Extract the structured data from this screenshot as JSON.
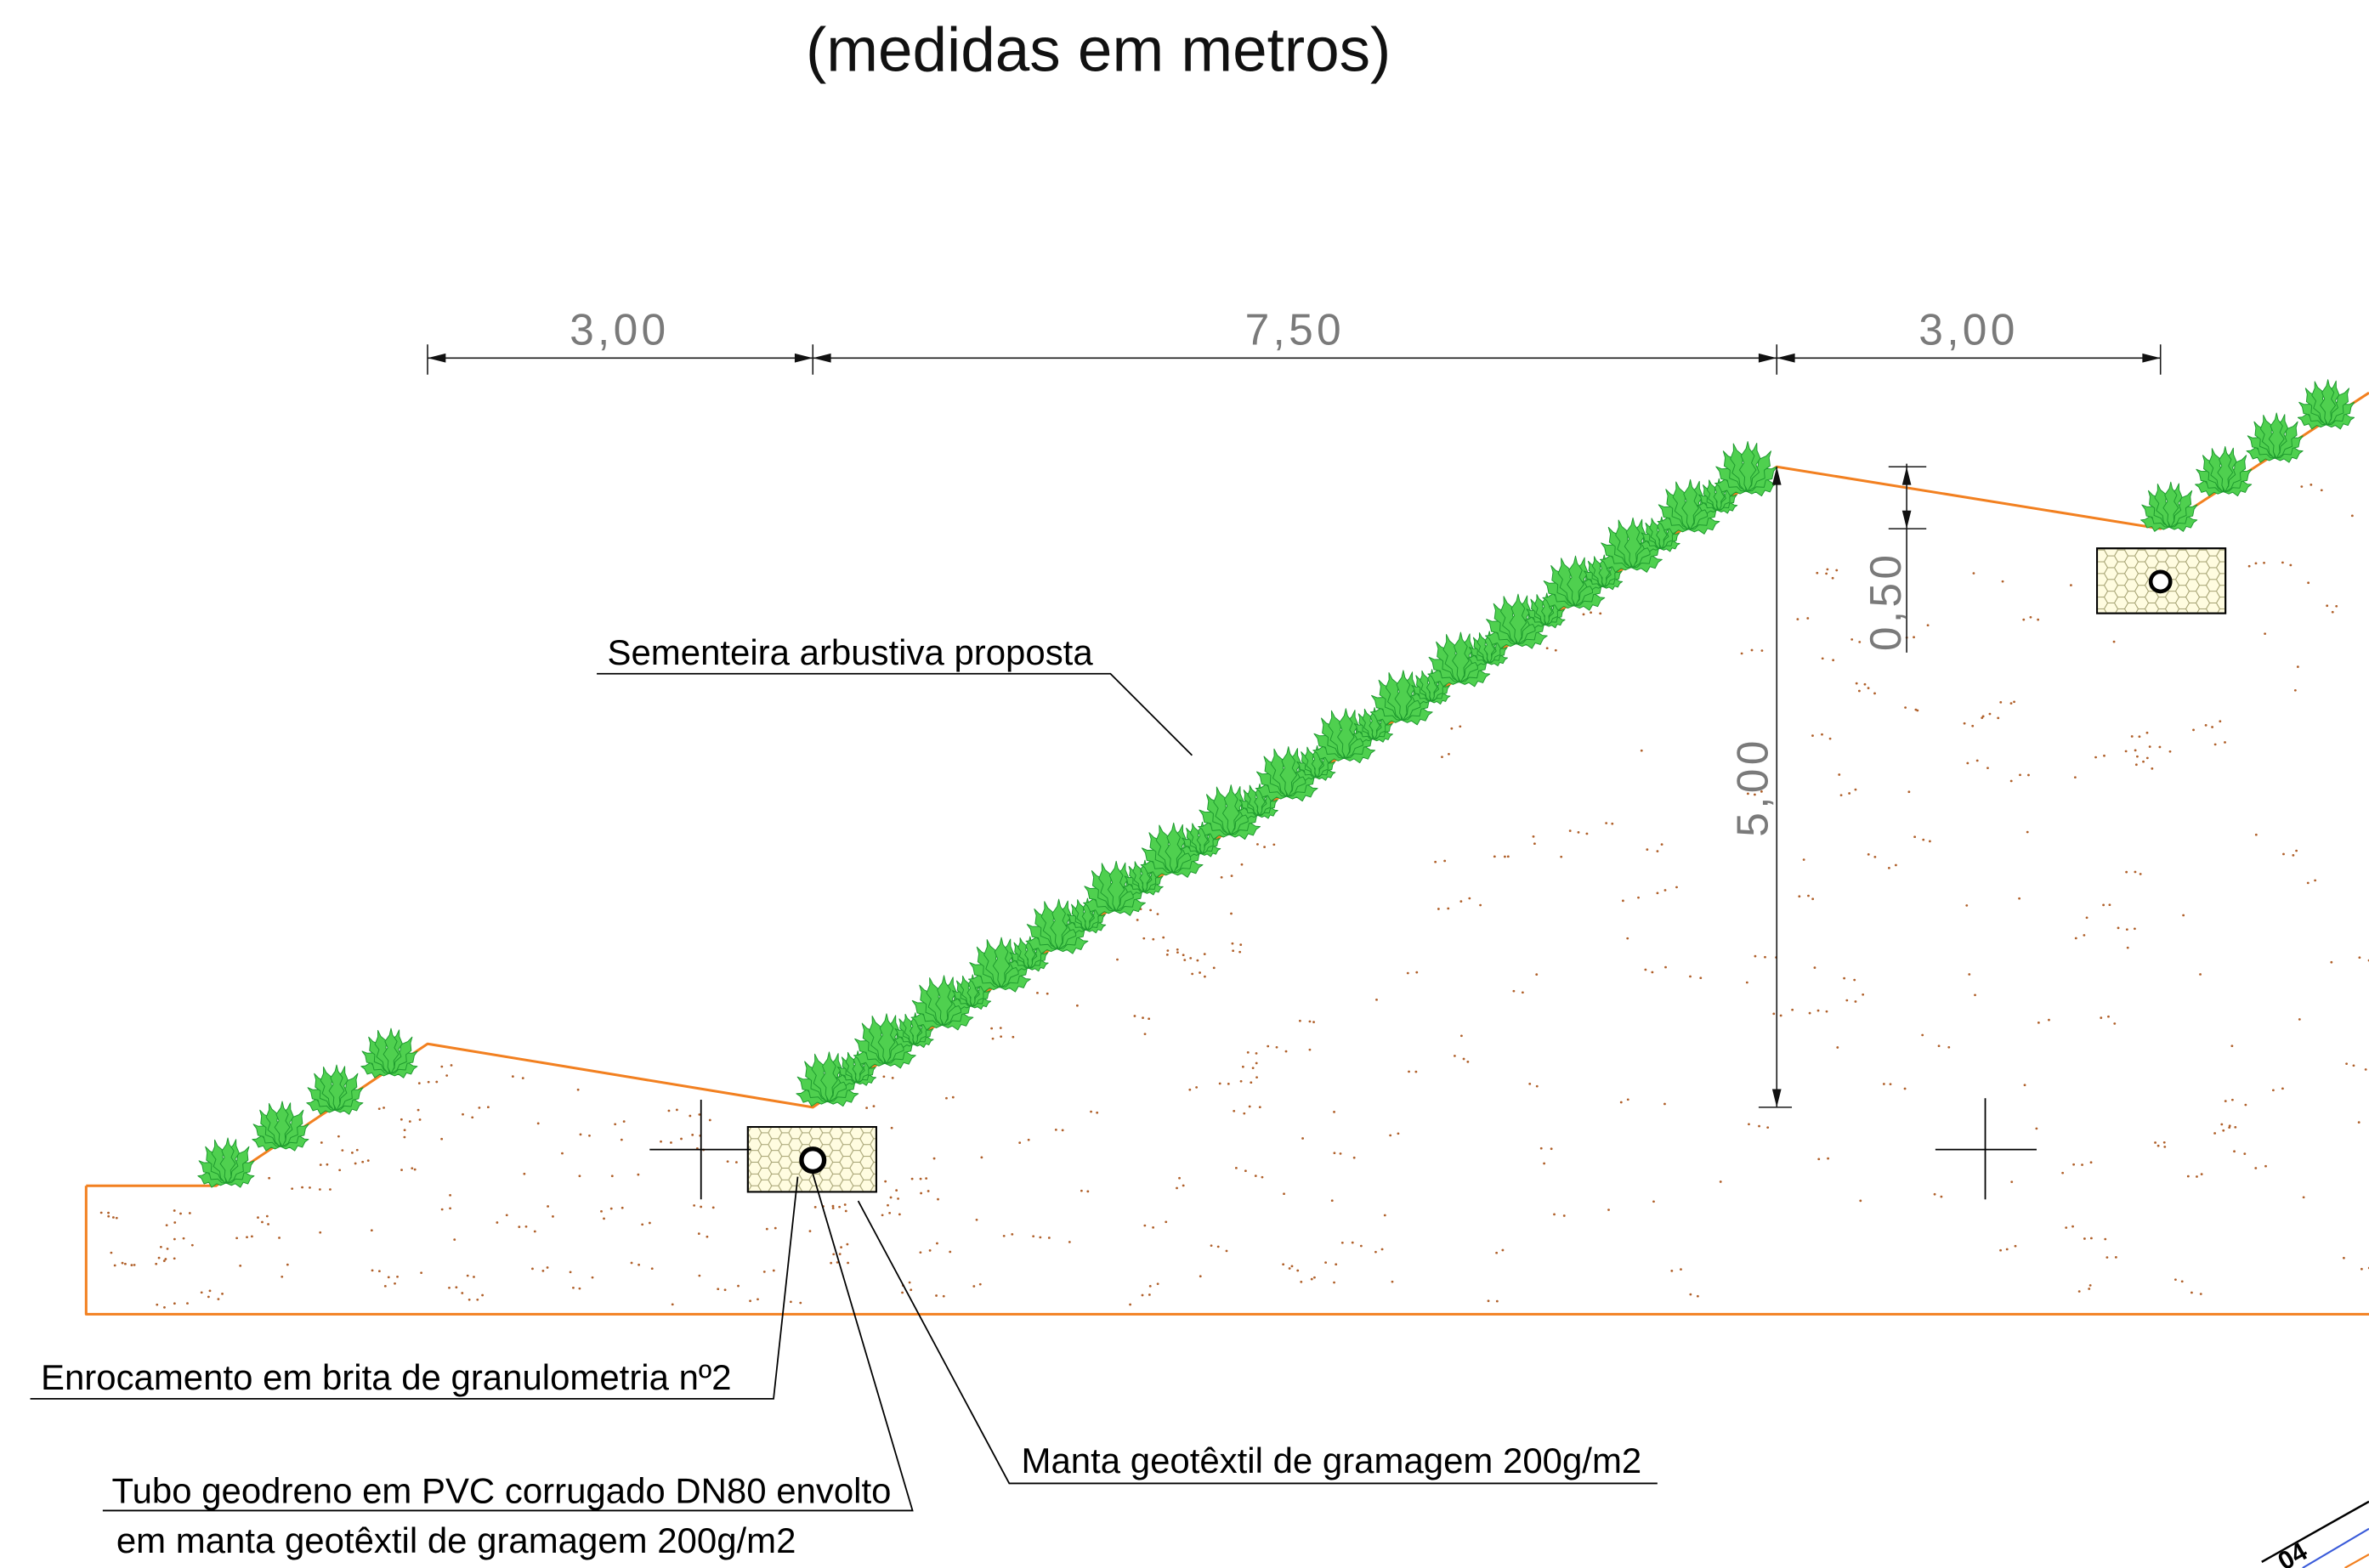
{
  "title": "(medidas em metros)",
  "dimensions": {
    "berm_left": "3,00",
    "slope_horizontal": "7,50",
    "berm_right": "3,00",
    "slope_height": "5,00",
    "berm_drop": "0,50"
  },
  "labels": {
    "vegetation": "Sementeira arbustiva proposta",
    "rockfill": "Enrocamento em brita de granulometria nº2",
    "drain_pipe_line1": "Tubo geodreno em PVC corrugado DN80 envolto",
    "drain_pipe_line2": "em manta geotêxtil de gramagem 200g/m2",
    "geotextile": "Manta geotêxtil de gramagem 200g/m2"
  },
  "corner_label": "04",
  "colors": {
    "ground_line": "#F28020",
    "vegetation": "#4FD04F",
    "vegetation_outline": "#1E9A2E",
    "soil_dots": "#B0602A",
    "drain_fill": "#FFFCE0",
    "dimension_text": "#7A7A7A"
  }
}
